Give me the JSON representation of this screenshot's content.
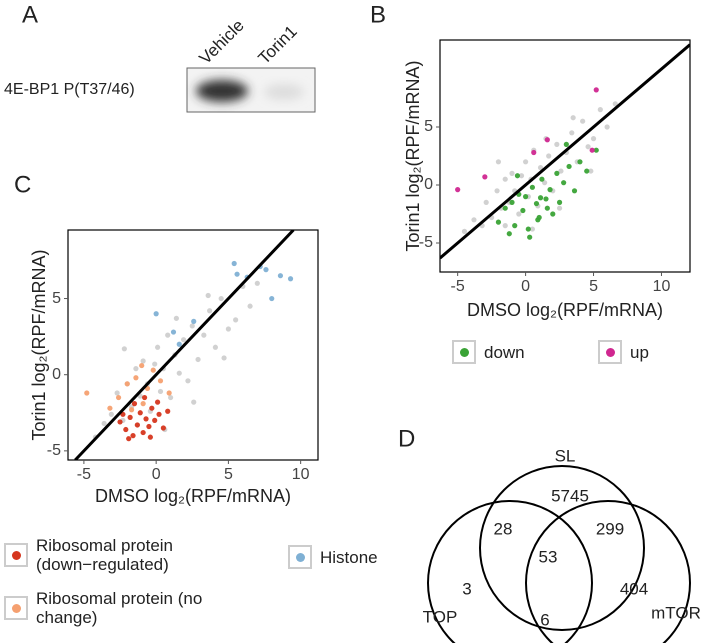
{
  "panel_labels": [
    "A",
    "B",
    "C",
    "D"
  ],
  "blot": {
    "row_label": "4E-BP1 P(T37/46)",
    "lanes": [
      "Vehicle",
      "Torin1"
    ]
  },
  "chart_data": [
    {
      "type": "scatter",
      "x_label": "DMSO log₂(RPF/mRNA)",
      "y_label": "Torin1 log₂(RPF/mRNA)",
      "xlim": [
        -6.3,
        12.1
      ],
      "ylim": [
        -7.5,
        12.5
      ],
      "xticks": [
        -5,
        0,
        5,
        10
      ],
      "yticks": [
        -5,
        0,
        5
      ],
      "series": [
        {
          "color": "#bdbdbd",
          "x": [
            -4.5,
            -3.8,
            -3.2,
            -2.9,
            -2.5,
            -2.1,
            -1.8,
            -1.5,
            -1.2,
            -1,
            -0.8,
            -0.5,
            -0.3,
            0,
            0.2,
            0.4,
            0.6,
            0.9,
            1.1,
            1.4,
            1.7,
            2,
            2.3,
            2.6,
            3,
            3.4,
            3.8,
            4.2,
            4.6,
            5,
            5.5,
            6,
            6.6,
            -1.5,
            0.5,
            1.5,
            2.5,
            -2,
            3.5,
            4.8
          ],
          "values": [
            -4,
            -3,
            -3.5,
            -1.5,
            -2.8,
            -0.5,
            -2,
            0.5,
            -1.5,
            1,
            -0.5,
            -2.5,
            0.8,
            2,
            -1,
            0.5,
            3,
            -1.8,
            1.5,
            0.2,
            2.5,
            -0.5,
            3.5,
            1.2,
            2.8,
            4.5,
            2,
            5.5,
            3.3,
            4,
            6.5,
            5,
            7,
            -3.5,
            -3.8,
            4,
            -2,
            2,
            5.8,
            1.2
          ]
        },
        {
          "name": "down",
          "color": "#3aa336",
          "x": [
            -2,
            -1.5,
            -1,
            -0.8,
            -0.5,
            -0.2,
            0,
            0.2,
            0.5,
            0.8,
            1,
            1.2,
            1.5,
            1.8,
            2,
            2.3,
            2.8,
            3.2,
            3.6,
            4,
            4.5,
            5.2,
            -1.2,
            0.3,
            0.9,
            1.6,
            2.5,
            -0.6,
            1.1,
            3
          ],
          "values": [
            -3.2,
            -2,
            -1.5,
            -3.5,
            -0.8,
            -2.2,
            -1,
            -3.8,
            -0.2,
            -1.6,
            -2.8,
            0.5,
            -1.2,
            -0.4,
            -2.5,
            1,
            0.2,
            1.6,
            -0.5,
            2,
            1.2,
            3,
            -4.2,
            -4.5,
            -3,
            -2,
            -1.5,
            0.8,
            -1.1,
            3.5
          ]
        },
        {
          "name": "up",
          "color": "#d02790",
          "x": [
            -3,
            -5,
            0.6,
            1.6,
            4.9,
            5.2
          ],
          "values": [
            0.7,
            -0.4,
            2.8,
            3.9,
            3,
            8.2
          ]
        }
      ]
    },
    {
      "type": "scatter",
      "x_label": "DMSO log₂(RPF/mRNA)",
      "y_label": "Torin1 log₂(RPF/mRNA)",
      "xlim": [
        -6.1,
        11.2
      ],
      "ylim": [
        -5.6,
        9.5
      ],
      "xticks": [
        -5,
        0,
        5,
        10
      ],
      "yticks": [
        -5,
        0,
        5
      ],
      "series": [
        {
          "color": "#bdbdbd",
          "x": [
            -4.2,
            -3.6,
            -3.1,
            -2.7,
            -2.3,
            -2,
            -1.7,
            -1.4,
            -1.1,
            -0.9,
            -0.6,
            -0.4,
            -0.1,
            0.1,
            0.3,
            0.5,
            0.8,
            1,
            1.3,
            1.6,
            1.9,
            2.2,
            2.5,
            2.9,
            3.3,
            3.7,
            4.1,
            4.5,
            5,
            5.5,
            6,
            6.5,
            7,
            -1.3,
            0.6,
            1.4,
            2.6,
            -2.2,
            3.6,
            4.7
          ],
          "values": [
            -4.1,
            -3.2,
            -2.6,
            -1.2,
            -3,
            -0.6,
            -2.1,
            0.4,
            -1.4,
            0.9,
            -0.6,
            -2.4,
            0.7,
            1.8,
            -1.1,
            0.4,
            2.6,
            -1.5,
            1.3,
            0.1,
            2.3,
            -0.4,
            3.2,
            1,
            2.6,
            4.2,
            1.8,
            5,
            3,
            3.6,
            5.8,
            4.5,
            6,
            -3.3,
            -3.6,
            3.7,
            -1.8,
            1.7,
            5.2,
            1.1
          ]
        },
        {
          "name": "Ribosomal protein (down−regulated)",
          "color": "#d6361e",
          "x": [
            -2.5,
            -2.1,
            -1.8,
            -1.6,
            -1.3,
            -1.1,
            -0.9,
            -0.7,
            -0.5,
            -0.3,
            -0.1,
            0.2,
            0.5,
            0.8,
            -2.3,
            -1.5,
            -0.8,
            0.1,
            -1.9,
            -0.4
          ],
          "values": [
            -3.1,
            -3.6,
            -2.8,
            -4,
            -3.3,
            -2.5,
            -3.8,
            -2.9,
            -3.4,
            -2.2,
            -3,
            -2.6,
            -3.5,
            -2.4,
            -2.6,
            -1.9,
            -1.5,
            -1.8,
            -4.2,
            -4.1
          ]
        },
        {
          "name": "Ribosomal protein (no change)",
          "color": "#f5a070",
          "x": [
            -4.8,
            -3.2,
            -2.6,
            -2,
            -1.4,
            -1,
            -0.6,
            -0.2,
            0.3,
            0.9,
            -1.7,
            -0.9
          ],
          "values": [
            -1.2,
            -2.2,
            -1.5,
            -0.6,
            -0.2,
            0.6,
            -0.9,
            0.3,
            -0.4,
            -1.2,
            -2.3,
            -1.9
          ]
        },
        {
          "name": "Histone",
          "color": "#7fb0d4",
          "x": [
            0,
            1.6,
            2.6,
            5.4,
            5.6,
            6.3,
            7.2,
            7.6,
            8,
            8.6,
            9.3,
            1.2
          ],
          "values": [
            4,
            2,
            3.5,
            7.3,
            6.6,
            6.4,
            7.1,
            6.9,
            5,
            6.5,
            6.3,
            2.8
          ]
        }
      ]
    },
    {
      "type": "venn",
      "sets": [
        "SL",
        "TOP",
        "mTOR"
      ],
      "regions": [
        {
          "sets": [
            0
          ],
          "value": 5745
        },
        {
          "sets": [
            0,
            1
          ],
          "value": 28
        },
        {
          "sets": [
            0,
            2
          ],
          "value": 299
        },
        {
          "sets": [
            0,
            1,
            2
          ],
          "value": 53
        },
        {
          "sets": [
            1
          ],
          "value": 3
        },
        {
          "sets": [
            1,
            2
          ],
          "value": 6
        },
        {
          "sets": [
            2
          ],
          "value": 404
        }
      ]
    }
  ]
}
